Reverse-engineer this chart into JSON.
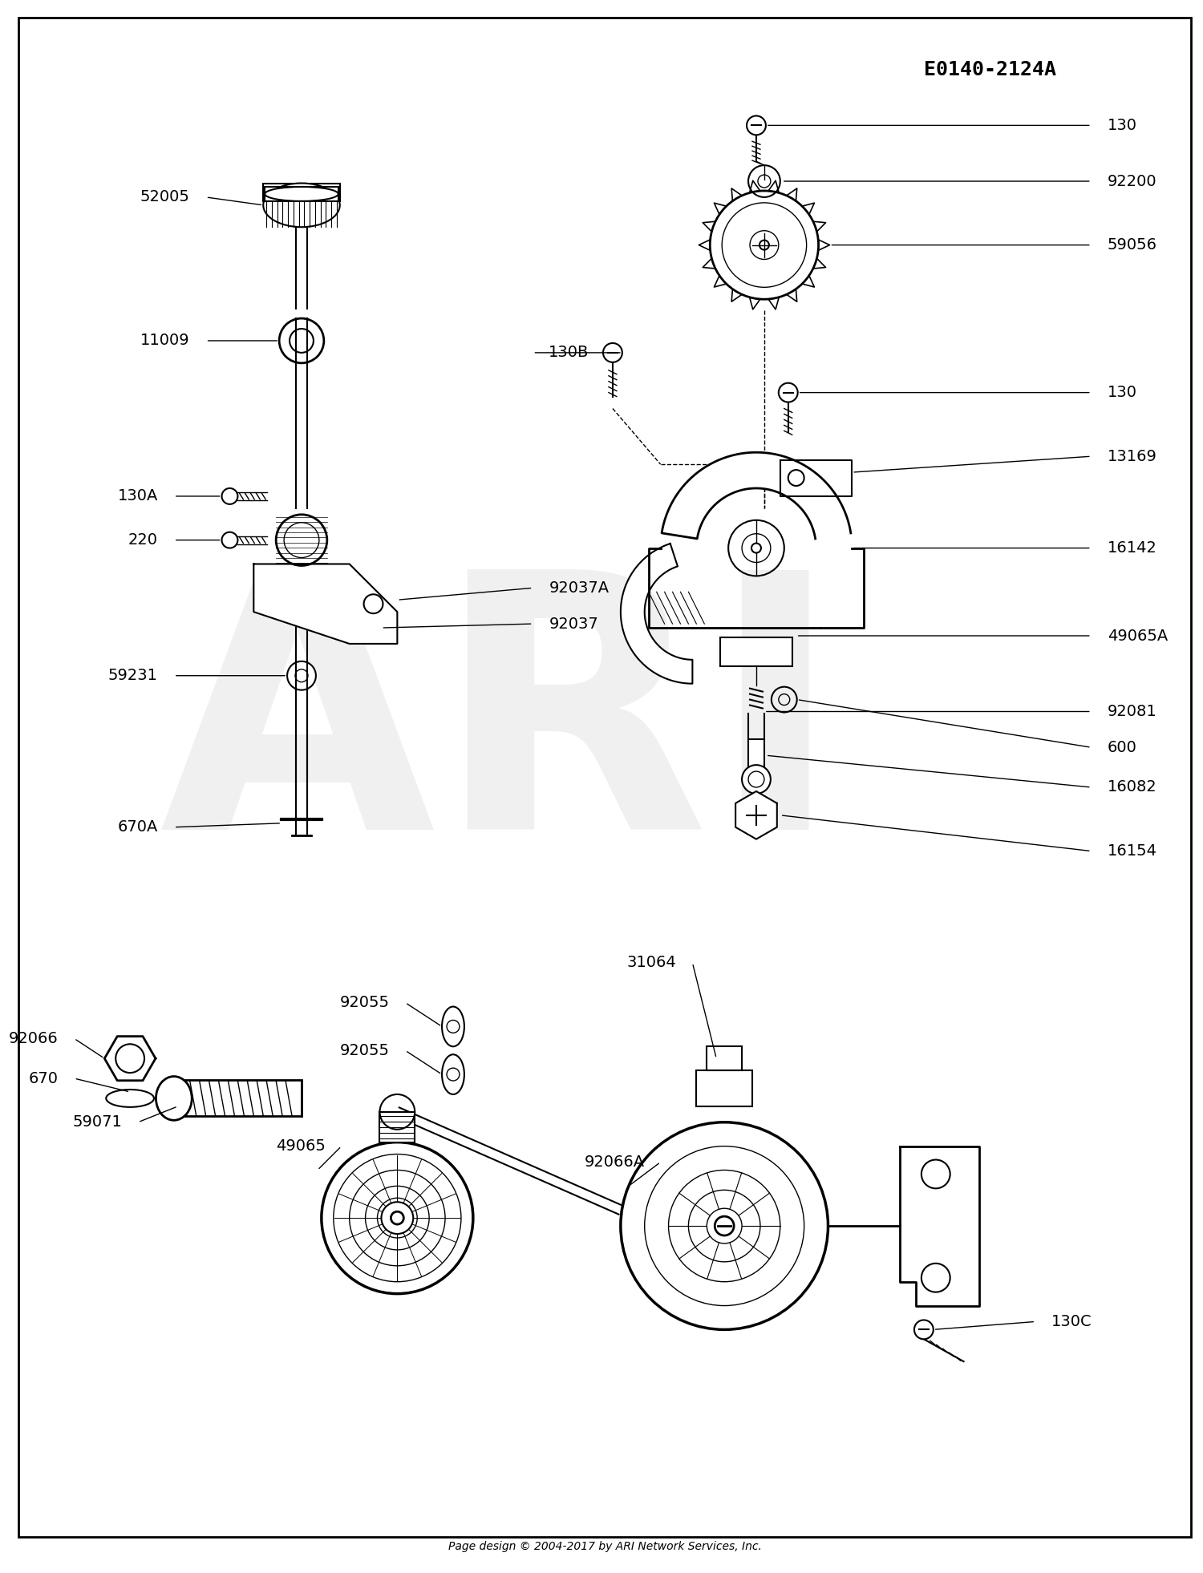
{
  "title_code": "E0140-2124A",
  "footer": "Page design © 2004-2017 by ARI Network Services, Inc.",
  "bg_color": "#ffffff",
  "watermark": "ARI"
}
